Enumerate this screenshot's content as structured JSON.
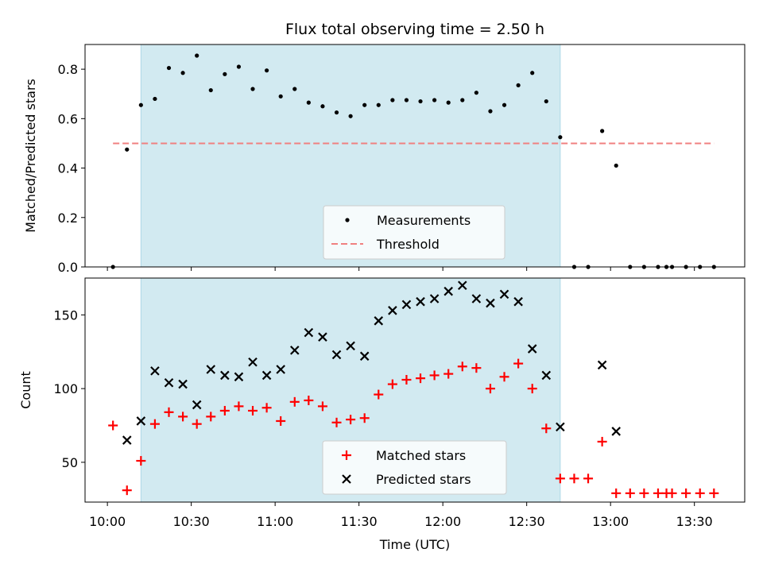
{
  "chart_data": {
    "title": "Flux total observing time = 2.50 h",
    "xlabel": "Time (UTC)",
    "x_ticks": [
      "10:00",
      "10:30",
      "11:00",
      "11:30",
      "12:00",
      "12:30",
      "13:00",
      "13:30"
    ],
    "x_range_minutes_since_1000": [
      -8,
      228
    ],
    "shaded_interval_minutes": [
      12,
      162
    ],
    "shade_color": "#add8e6",
    "panels": [
      {
        "type": "scatter",
        "ylabel": "Matched/Predicted stars",
        "ylim": [
          0,
          0.9
        ],
        "y_ticks": [
          0.0,
          0.2,
          0.4,
          0.6,
          0.8
        ],
        "legend_position": "lower-center",
        "series": [
          {
            "name": "Measurements",
            "marker": "dot",
            "color": "#000000",
            "x": [
              2,
              7,
              12,
              17,
              22,
              27,
              32,
              37,
              42,
              47,
              52,
              57,
              62,
              67,
              72,
              77,
              82,
              87,
              92,
              97,
              102,
              107,
              112,
              117,
              122,
              127,
              132,
              137,
              142,
              147,
              152,
              157,
              162,
              167,
              172,
              177,
              182,
              187,
              192,
              197,
              200,
              202,
              207,
              212,
              217
            ],
            "y": [
              0.0,
              0.475,
              0.655,
              0.68,
              0.805,
              0.785,
              0.855,
              0.715,
              0.78,
              0.81,
              0.72,
              0.795,
              0.69,
              0.72,
              0.665,
              0.65,
              0.625,
              0.61,
              0.655,
              0.655,
              0.675,
              0.675,
              0.67,
              0.675,
              0.665,
              0.675,
              0.705,
              0.63,
              0.655,
              0.735,
              0.785,
              0.67,
              0.525,
              0.0,
              0.0,
              0.55,
              0.41,
              0.0,
              0.0,
              0.0,
              0.0,
              0.0,
              0.0,
              0.0,
              0.0
            ]
          },
          {
            "name": "Threshold",
            "type": "line",
            "style": "dashed",
            "color": "#f08080",
            "x": [
              2,
              217
            ],
            "y": [
              0.5,
              0.5
            ]
          }
        ]
      },
      {
        "type": "scatter",
        "ylabel": "Count",
        "ylim": [
          23,
          175
        ],
        "y_ticks": [
          50,
          100,
          150
        ],
        "legend_position": "lower-center",
        "series": [
          {
            "name": "Matched stars",
            "marker": "plus",
            "color": "#ff0000",
            "x": [
              2,
              7,
              12,
              17,
              22,
              27,
              32,
              37,
              42,
              47,
              52,
              57,
              62,
              67,
              72,
              77,
              82,
              87,
              92,
              97,
              102,
              107,
              112,
              117,
              122,
              127,
              132,
              137,
              142,
              147,
              152,
              157,
              162,
              167,
              172,
              177,
              182,
              187,
              192,
              197,
              200,
              202,
              207,
              212,
              217
            ],
            "y": [
              75,
              31,
              51,
              76,
              84,
              81,
              76,
              81,
              85,
              88,
              85,
              87,
              78,
              91,
              92,
              88,
              77,
              79,
              80,
              96,
              103,
              106,
              107,
              109,
              110,
              115,
              114,
              100,
              108,
              117,
              100,
              73,
              39,
              39,
              39,
              64,
              29,
              29,
              29,
              29,
              29,
              29,
              29,
              29,
              29
            ]
          },
          {
            "name": "Predicted stars",
            "marker": "x",
            "color": "#000000",
            "x": [
              7,
              12,
              17,
              22,
              27,
              32,
              37,
              42,
              47,
              52,
              57,
              62,
              67,
              72,
              77,
              82,
              87,
              92,
              97,
              102,
              107,
              112,
              117,
              122,
              127,
              132,
              137,
              142,
              147,
              152,
              157,
              162,
              177,
              182
            ],
            "y": [
              65,
              78,
              112,
              104,
              103,
              89,
              113,
              109,
              108,
              118,
              109,
              113,
              126,
              138,
              135,
              123,
              129,
              122,
              146,
              153,
              157,
              159,
              161,
              166,
              170,
              161,
              158,
              164,
              159,
              127,
              109,
              74,
              116,
              71
            ]
          }
        ]
      }
    ]
  }
}
